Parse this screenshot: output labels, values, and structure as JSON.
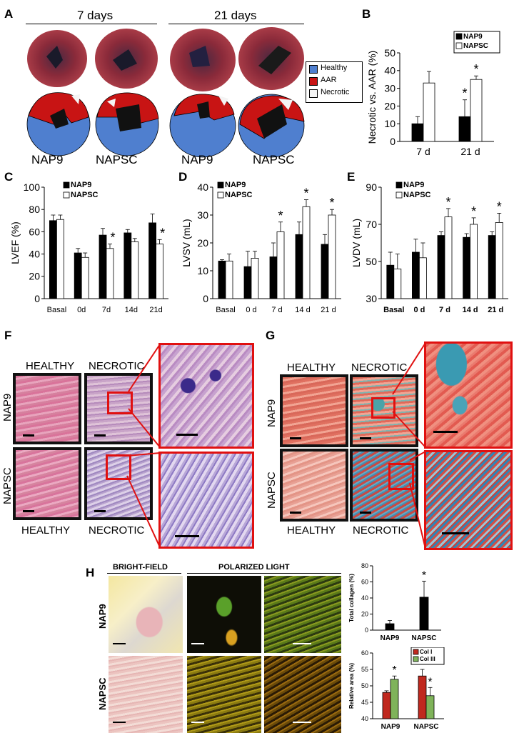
{
  "panels": {
    "A": {
      "letter": "A",
      "time_left": "7 days",
      "time_right": "21 days",
      "groups": [
        "NAP9",
        "NAPSC",
        "NAP9",
        "NAPSC"
      ],
      "legend": [
        {
          "label": "Healthy",
          "color": "#4f7fcf"
        },
        {
          "label": "AAR",
          "color": "#c81414"
        },
        {
          "label": "Necrotic",
          "color": "#f4f4f4"
        }
      ]
    },
    "B": {
      "letter": "B"
    },
    "C": {
      "letter": "C"
    },
    "D": {
      "letter": "D"
    },
    "E": {
      "letter": "E"
    },
    "F": {
      "letter": "F",
      "col_top_left": "HEALTHY",
      "col_top_right": "NECROTIC",
      "col_bottom_left": "HEALTHY",
      "col_bottom_right": "NECROTIC",
      "row_top": "NAP9",
      "row_bottom": "NAPSC"
    },
    "G": {
      "letter": "G",
      "col_top_left": "HEALTHY",
      "col_top_right": "NECROTIC",
      "col_bottom_left": "HEALTHY",
      "col_bottom_right": "NECROTIC",
      "row_top": "NAP9",
      "row_bottom": "NAPSC"
    },
    "H": {
      "letter": "H",
      "bright_field": "BRIGHT-FIELD",
      "polarized": "POLARIZED LIGHT",
      "row_top": "NAP9",
      "row_bottom": "NAPSC"
    }
  },
  "colors": {
    "nap9": "#000000",
    "napsc": "#ffffff",
    "col1": "#c0281e",
    "col3": "#7fb35a",
    "frame_red": "#e01010"
  },
  "chart_data": [
    {
      "id": "B",
      "type": "bar",
      "categories": [
        "7 d",
        "21 d"
      ],
      "series": [
        {
          "name": "NAP9",
          "values": [
            10,
            14
          ],
          "errors": [
            4,
            9.5
          ]
        },
        {
          "name": "NAPSC",
          "values": [
            33,
            35
          ],
          "errors": [
            6.5,
            2
          ]
        }
      ],
      "ylabel": "Necrotic vs. AAR (%)",
      "ylim": [
        0,
        50
      ],
      "yticks": [
        0,
        10,
        20,
        30,
        40,
        50
      ],
      "significance": [
        [
          false,
          true
        ],
        [
          false,
          true
        ]
      ],
      "legend_position": "top-right"
    },
    {
      "id": "C",
      "type": "bar",
      "categories": [
        "Basal",
        "0d",
        "7d",
        "14d",
        "21d"
      ],
      "series": [
        {
          "name": "NAP9",
          "values": [
            70,
            41,
            57,
            59,
            68
          ],
          "errors": [
            5,
            4,
            6,
            3,
            8
          ]
        },
        {
          "name": "NAPSC",
          "values": [
            71,
            37,
            45,
            51,
            49
          ],
          "errors": [
            4,
            4,
            4,
            3,
            4
          ]
        }
      ],
      "ylabel": "LVEF (%)",
      "ylim": [
        0,
        100
      ],
      "yticks": [
        0,
        20,
        40,
        60,
        80,
        100
      ],
      "significance": [
        [
          false,
          false,
          false,
          false,
          false
        ],
        [
          false,
          false,
          true,
          false,
          true
        ]
      ],
      "legend_position": "top-left"
    },
    {
      "id": "D",
      "type": "bar",
      "categories": [
        "Basal",
        "0 d",
        "7 d",
        "14 d",
        "21 d"
      ],
      "series": [
        {
          "name": "NAP9",
          "values": [
            13.5,
            11.5,
            15,
            23,
            19.5
          ],
          "errors": [
            0.5,
            5.5,
            5,
            4.5,
            3.5
          ]
        },
        {
          "name": "NAPSC",
          "values": [
            13.5,
            14.5,
            24,
            33,
            30
          ],
          "errors": [
            2.5,
            2.5,
            3.5,
            2.5,
            2
          ]
        }
      ],
      "ylabel": "LVSV (mL)",
      "ylim": [
        0,
        40
      ],
      "yticks": [
        0,
        10,
        20,
        30,
        40
      ],
      "significance": [
        [
          false,
          false,
          false,
          false,
          false
        ],
        [
          false,
          false,
          true,
          true,
          true
        ]
      ],
      "legend_position": "top-left"
    },
    {
      "id": "E",
      "type": "bar",
      "categories": [
        "Basal",
        "0 d",
        "7 d",
        "14 d",
        "21 d"
      ],
      "series": [
        {
          "name": "NAP9",
          "values": [
            48,
            55,
            64,
            63,
            64
          ],
          "errors": [
            7,
            7,
            2,
            2,
            2
          ]
        },
        {
          "name": "NAPSC",
          "values": [
            46,
            52,
            74,
            70,
            71
          ],
          "errors": [
            8,
            8,
            4.5,
            3.5,
            5
          ]
        }
      ],
      "ylabel": "LVDV (mL)",
      "ylim": [
        30,
        90
      ],
      "yticks": [
        30,
        50,
        70,
        90
      ],
      "significance": [
        [
          false,
          false,
          false,
          false,
          false
        ],
        [
          false,
          false,
          true,
          true,
          true
        ]
      ],
      "legend_position": "top-left"
    },
    {
      "id": "H1",
      "type": "bar",
      "categories": [
        "NAP9",
        "NAPSC"
      ],
      "series": [
        {
          "values": [
            8,
            41
          ],
          "errors": [
            4,
            20
          ]
        }
      ],
      "ylabel": "Total collagen (%)",
      "ylim": [
        0,
        80
      ],
      "yticks": [
        0,
        20,
        40,
        60,
        80
      ],
      "significance": [
        [
          false,
          true
        ]
      ]
    },
    {
      "id": "H2",
      "type": "bar",
      "categories": [
        "NAP9",
        "NAPSC"
      ],
      "series": [
        {
          "name": "Col I",
          "values": [
            48,
            53
          ],
          "errors": [
            0.5,
            2
          ]
        },
        {
          "name": "Col III",
          "values": [
            52,
            47
          ],
          "errors": [
            1,
            2.5
          ]
        }
      ],
      "ylabel": "Relative area (%)",
      "ylim": [
        40,
        60
      ],
      "yticks": [
        40,
        45,
        50,
        55,
        60
      ],
      "significance": [
        [
          false,
          false
        ],
        [
          true,
          true
        ]
      ],
      "legend_position": "top-right"
    }
  ]
}
